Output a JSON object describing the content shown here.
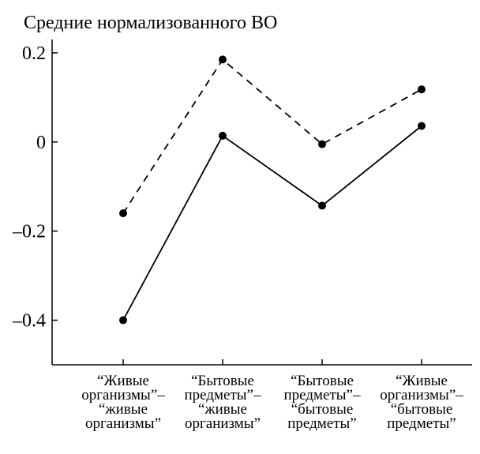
{
  "chart_data": {
    "type": "line",
    "title": "Средние нормализованного ВО",
    "xlabel": "",
    "ylabel": "",
    "categories": [
      [
        "“Живые",
        "организмы”–",
        "“живые",
        "организмы”"
      ],
      [
        "“Бытовые",
        "предметы”–",
        "“живые",
        "организмы”"
      ],
      [
        "“Бытовые",
        "предметы”–",
        "“бытовые",
        "предметы”"
      ],
      [
        "“Живые",
        "организмы”–",
        "“бытовые",
        "предметы”"
      ]
    ],
    "yticks": [
      {
        "value": 0.2,
        "label": "0.2"
      },
      {
        "value": 0,
        "label": "0"
      },
      {
        "value": -0.2,
        "label": "–0.2"
      },
      {
        "value": -0.4,
        "label": "–0.4"
      }
    ],
    "ylim": [
      -0.5,
      0.23
    ],
    "grid": false,
    "series": [
      {
        "style": "dashed",
        "color": "#000000",
        "values": [
          -0.16,
          0.185,
          -0.005,
          0.118
        ]
      },
      {
        "style": "solid",
        "color": "#000000",
        "values": [
          -0.4,
          0.014,
          -0.143,
          0.036
        ]
      }
    ]
  }
}
